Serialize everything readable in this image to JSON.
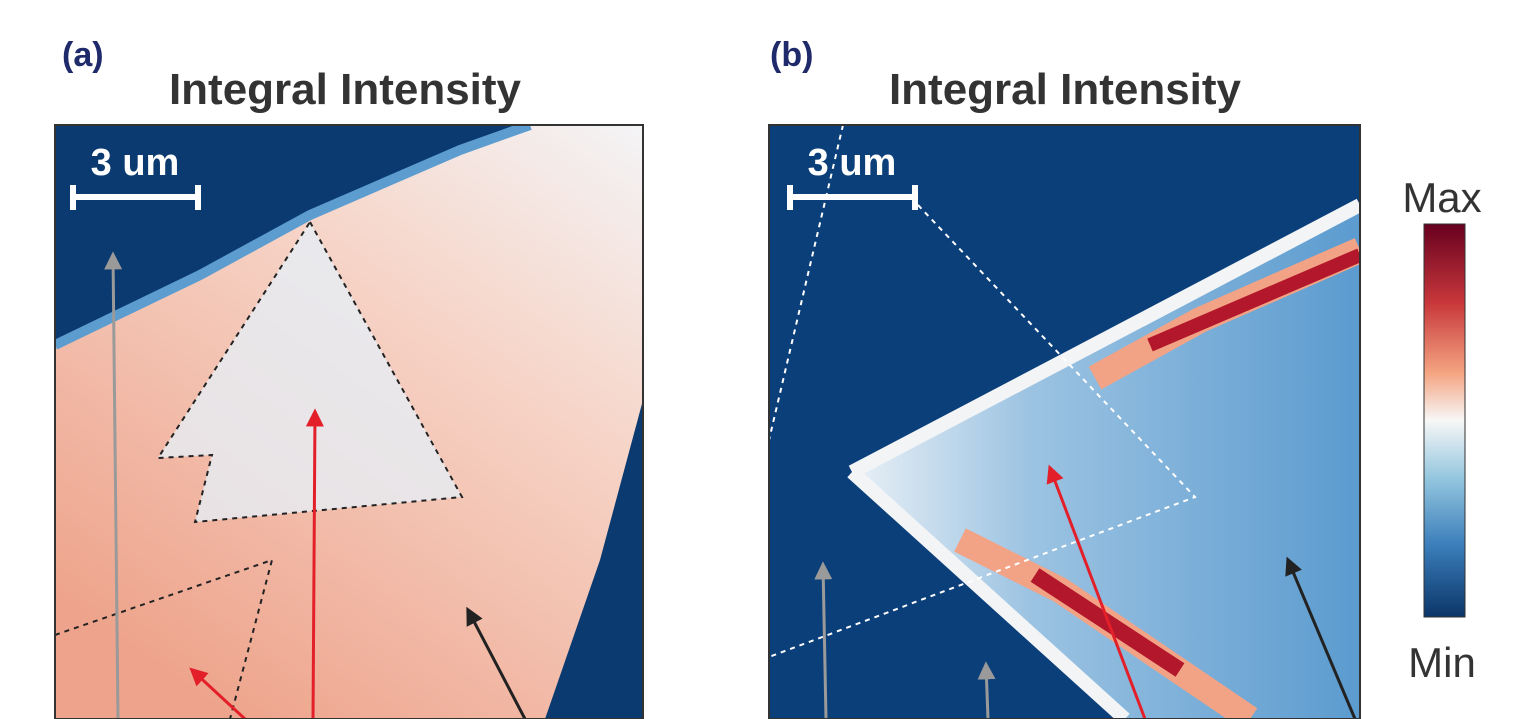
{
  "panels": [
    {
      "label": "(a)",
      "title": "Integral Intensity",
      "scale_bar": "3 um"
    },
    {
      "label": "(b)",
      "title": "Integral Intensity",
      "scale_bar": "3 um"
    }
  ],
  "colorbar": {
    "max": "Max",
    "min": "Min"
  }
}
